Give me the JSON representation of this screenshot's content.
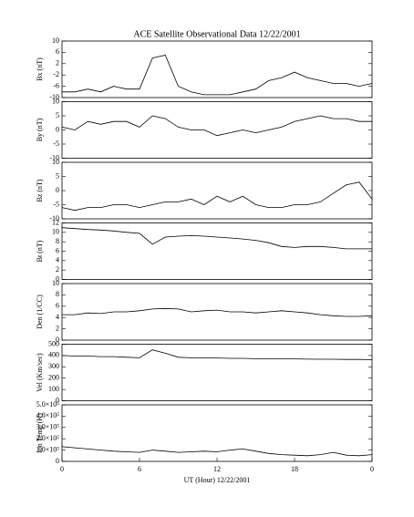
{
  "chart_data": [
    {
      "type": "line",
      "title": "ACE Satellite Observational Data   12/22/2001",
      "ylabel": "Bx (nT)",
      "x": [
        0,
        1,
        2,
        3,
        4,
        5,
        6,
        7,
        8,
        9,
        10,
        11,
        12,
        13,
        14,
        15,
        16,
        17,
        18,
        19,
        20,
        21,
        22,
        23,
        24
      ],
      "values": [
        -8,
        -8,
        -7,
        -8,
        -6,
        -7,
        -7,
        4,
        5,
        -6,
        -8,
        -9,
        -9,
        -9,
        -8,
        -7,
        -4,
        -3,
        -1,
        -3,
        -4,
        -5,
        -5,
        -6,
        -5
      ],
      "xlim": [
        0,
        24
      ],
      "ylim": [
        -10,
        10
      ],
      "yticks": [
        -10,
        -6,
        -2,
        2,
        6,
        10
      ],
      "color": "#000000"
    },
    {
      "type": "line",
      "ylabel": "By (nT)",
      "x": [
        0,
        1,
        2,
        3,
        4,
        5,
        6,
        7,
        8,
        9,
        10,
        11,
        12,
        13,
        14,
        15,
        16,
        17,
        18,
        19,
        20,
        21,
        22,
        23,
        24
      ],
      "values": [
        1,
        0,
        3,
        2,
        3,
        3,
        1,
        5,
        4,
        1,
        0,
        0,
        -2,
        -1,
        0,
        -1,
        0,
        1,
        3,
        4,
        5,
        4,
        4,
        3,
        3
      ],
      "xlim": [
        0,
        24
      ],
      "ylim": [
        -10,
        10
      ],
      "yticks": [
        -10,
        -5,
        0,
        5,
        10
      ],
      "color": "#000000"
    },
    {
      "type": "line",
      "ylabel": "Bz (nT)",
      "x": [
        0,
        1,
        2,
        3,
        4,
        5,
        6,
        7,
        8,
        9,
        10,
        11,
        12,
        13,
        14,
        15,
        16,
        17,
        18,
        19,
        20,
        21,
        22,
        23,
        24
      ],
      "values": [
        -6,
        -7,
        -6,
        -6,
        -5,
        -5,
        -6,
        -5,
        -4,
        -4,
        -3,
        -5,
        -2,
        -4,
        -2,
        -5,
        -6,
        -6,
        -5,
        -5,
        -4,
        -1,
        2,
        3,
        -3
      ],
      "xlim": [
        0,
        24
      ],
      "ylim": [
        -10,
        10
      ],
      "yticks": [
        -10,
        -5,
        0,
        5,
        10
      ],
      "color": "#000000"
    },
    {
      "type": "line",
      "ylabel": "Bt (nT)",
      "x": [
        0,
        1,
        2,
        3,
        4,
        5,
        6,
        7,
        8,
        9,
        10,
        11,
        12,
        13,
        14,
        15,
        16,
        17,
        18,
        19,
        20,
        21,
        22,
        23,
        24
      ],
      "values": [
        11,
        10.8,
        10.6,
        10.5,
        10.3,
        10,
        9.8,
        7.5,
        9,
        9.2,
        9.3,
        9.2,
        9,
        8.8,
        8.6,
        8.3,
        7.8,
        7,
        6.8,
        7,
        7,
        6.8,
        6.5,
        6.5,
        6.5
      ],
      "xlim": [
        0,
        24
      ],
      "ylim": [
        0,
        12
      ],
      "yticks": [
        0,
        2,
        4,
        6,
        8,
        10,
        12
      ],
      "color": "#000000"
    },
    {
      "type": "line",
      "ylabel": "Den (1/CC)",
      "x": [
        0,
        1,
        2,
        3,
        4,
        5,
        6,
        7,
        8,
        9,
        10,
        11,
        12,
        13,
        14,
        15,
        16,
        17,
        18,
        19,
        20,
        21,
        22,
        23,
        24
      ],
      "values": [
        4.5,
        4.5,
        4.8,
        4.7,
        5,
        5,
        5.2,
        5.5,
        5.6,
        5.5,
        5,
        5.2,
        5.3,
        5,
        5,
        4.8,
        5,
        5.2,
        5,
        4.8,
        4.5,
        4.3,
        4.2,
        4.2,
        4.3
      ],
      "xlim": [
        0,
        24
      ],
      "ylim": [
        0,
        10
      ],
      "yticks": [
        0,
        2,
        4,
        6,
        8,
        10
      ],
      "color": "#000000"
    },
    {
      "type": "line",
      "ylabel": "Vel (Km/sec)",
      "x": [
        0,
        1,
        2,
        3,
        4,
        5,
        6,
        7,
        8,
        9,
        10,
        11,
        12,
        13,
        14,
        15,
        16,
        17,
        18,
        19,
        20,
        21,
        22,
        23,
        24
      ],
      "values": [
        400,
        395,
        395,
        390,
        390,
        385,
        380,
        450,
        420,
        385,
        380,
        380,
        378,
        375,
        375,
        372,
        370,
        370,
        370,
        368,
        367,
        367,
        365,
        365,
        363
      ],
      "xlim": [
        0,
        24
      ],
      "ylim": [
        0,
        500
      ],
      "yticks": [
        0,
        100,
        200,
        300,
        400,
        500
      ],
      "color": "#000000"
    },
    {
      "type": "line",
      "ylabel": "Ion Temp (K)",
      "xlabel": "UT (Hour)  12/22/2001",
      "x": [
        0,
        1,
        2,
        3,
        4,
        5,
        6,
        7,
        8,
        9,
        10,
        11,
        12,
        13,
        14,
        15,
        16,
        17,
        18,
        19,
        20,
        21,
        22,
        23,
        24
      ],
      "values": [
        130000,
        120000,
        110000,
        100000,
        90000,
        85000,
        80000,
        100000,
        90000,
        80000,
        85000,
        90000,
        85000,
        100000,
        110000,
        90000,
        70000,
        60000,
        55000,
        50000,
        60000,
        80000,
        55000,
        50000,
        60000
      ],
      "xlim": [
        0,
        24
      ],
      "ylim": [
        0,
        500000
      ],
      "yticks": [
        0,
        {
          "value": 100000,
          "label": "1.0×10⁵"
        },
        {
          "value": 200000,
          "label": "2.0×10⁵"
        },
        {
          "value": 300000,
          "label": "3.0×10⁵"
        },
        {
          "value": 400000,
          "label": "4.0×10⁵"
        },
        {
          "value": 500000,
          "label": "5.0×10⁵"
        }
      ],
      "xticks": [
        0,
        6,
        12,
        18,
        {
          "value": 24,
          "label": "0"
        }
      ],
      "color": "#000000"
    }
  ]
}
